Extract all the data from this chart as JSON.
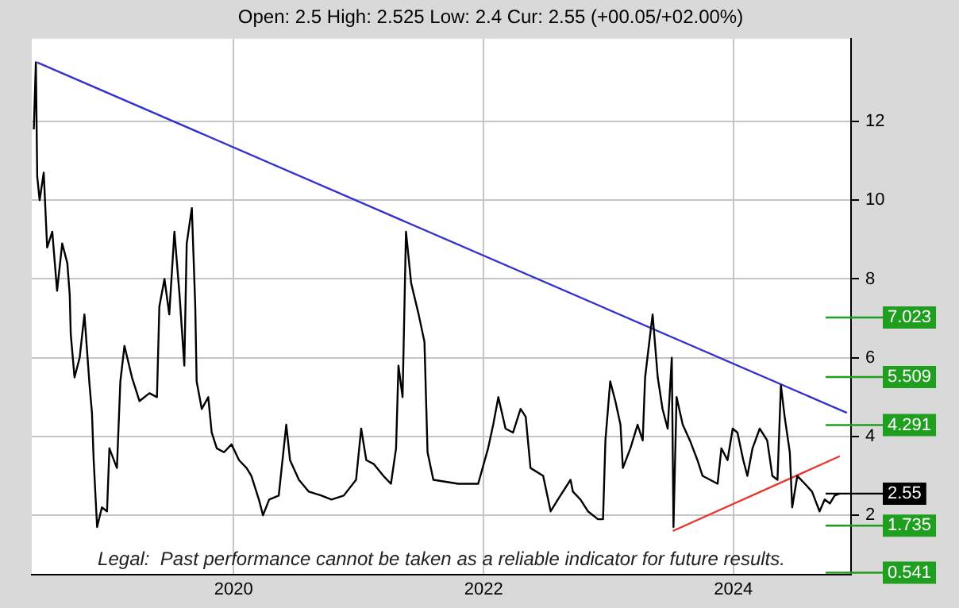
{
  "chart_data": {
    "type": "line",
    "subtitle": "Open: 2.5 High: 2.525 Low: 2.4 Cur: 2.55 (+00.05/+02.00%)",
    "annotations": [
      "Legal:  Past performance cannot be taken as a reliable indicator for future results."
    ],
    "xlim": [
      "2018-05-21",
      "2024-12-10"
    ],
    "xticks": [
      "2020",
      "2022",
      "2024"
    ],
    "ylim": [
      0.5,
      14.1
    ],
    "yticks": [
      2,
      4,
      6,
      8,
      10,
      12
    ],
    "grid": true,
    "legend": false,
    "series": [
      {
        "color": "#000000",
        "x": [
          "2018-05-27",
          "2018-06-02",
          "2018-06-06",
          "2018-06-13",
          "2018-06-25",
          "2018-07-05",
          "2018-07-20",
          "2018-08-03",
          "2018-08-18",
          "2018-09-02",
          "2018-09-09",
          "2018-09-12",
          "2018-09-23",
          "2018-10-08",
          "2018-10-22",
          "2018-11-06",
          "2018-11-13",
          "2018-11-18",
          "2018-11-28",
          "2018-12-12",
          "2018-12-27",
          "2019-01-03",
          "2019-01-25",
          "2019-02-04",
          "2019-02-16",
          "2019-03-10",
          "2019-04-01",
          "2019-04-30",
          "2019-05-22",
          "2019-05-29",
          "2019-06-13",
          "2019-06-27",
          "2019-07-12",
          "2019-07-27",
          "2019-08-10",
          "2019-08-17",
          "2019-09-01",
          "2019-09-11",
          "2019-09-15",
          "2019-09-30",
          "2019-10-19",
          "2019-10-29",
          "2019-11-13",
          "2019-12-04",
          "2019-12-26",
          "2020-01-17",
          "2020-02-08",
          "2020-02-22",
          "2020-03-15",
          "2020-03-27",
          "2020-04-14",
          "2020-05-12",
          "2020-06-03",
          "2020-06-14",
          "2020-07-10",
          "2020-08-08",
          "2020-09-14",
          "2020-10-13",
          "2020-11-18",
          "2020-12-24",
          "2021-01-08",
          "2021-01-23",
          "2021-02-14",
          "2021-03-14",
          "2021-04-05",
          "2021-04-20",
          "2021-04-27",
          "2021-05-09",
          "2021-05-19",
          "2021-06-03",
          "2021-06-25",
          "2021-07-12",
          "2021-07-21",
          "2021-08-07",
          "2021-10-19",
          "2021-12-16",
          "2022-01-14",
          "2022-01-29",
          "2022-02-13",
          "2022-03-06",
          "2022-03-28",
          "2022-04-19",
          "2022-05-04",
          "2022-05-18",
          "2022-06-24",
          "2022-07-16",
          "2022-08-06",
          "2022-09-12",
          "2022-09-19",
          "2022-10-11",
          "2022-11-02",
          "2022-12-01",
          "2022-12-16",
          "2022-12-23",
          "2023-01-06",
          "2023-01-21",
          "2023-02-05",
          "2023-02-12",
          "2023-03-06",
          "2023-03-27",
          "2023-04-11",
          "2023-04-18",
          "2023-05-03",
          "2023-05-10",
          "2023-05-25",
          "2023-06-08",
          "2023-06-23",
          "2023-07-05",
          "2023-07-10",
          "2023-07-19",
          "2023-08-06",
          "2023-08-27",
          "2023-09-18",
          "2023-10-03",
          "2023-10-25",
          "2023-11-16",
          "2023-11-27",
          "2023-12-15",
          "2023-12-30",
          "2024-01-13",
          "2024-01-30",
          "2024-02-11",
          "2024-02-26",
          "2024-03-18",
          "2024-04-09",
          "2024-04-24",
          "2024-05-09",
          "2024-05-19",
          "2024-05-30",
          "2024-06-14",
          "2024-06-21",
          "2024-07-06",
          "2024-07-28",
          "2024-08-18",
          "2024-09-09",
          "2024-09-24",
          "2024-10-09",
          "2024-10-23",
          "2024-11-07"
        ],
        "values": [
          11.8,
          13.5,
          10.6,
          10.0,
          10.7,
          8.8,
          9.2,
          7.7,
          8.9,
          8.4,
          7.6,
          6.6,
          5.5,
          6.0,
          7.1,
          5.3,
          4.6,
          3.4,
          1.7,
          2.2,
          2.1,
          3.7,
          3.2,
          5.4,
          6.3,
          5.5,
          4.9,
          5.1,
          5.0,
          7.3,
          8.0,
          7.1,
          9.2,
          7.6,
          5.8,
          8.9,
          9.8,
          7.3,
          5.4,
          4.7,
          5.0,
          4.1,
          3.7,
          3.6,
          3.8,
          3.4,
          3.2,
          3.0,
          2.4,
          2.0,
          2.4,
          2.5,
          4.3,
          3.4,
          2.9,
          2.6,
          2.5,
          2.4,
          2.5,
          2.9,
          4.2,
          3.4,
          3.3,
          3.0,
          2.8,
          3.7,
          5.8,
          5.0,
          9.2,
          7.9,
          7.1,
          6.4,
          3.6,
          2.9,
          2.8,
          2.8,
          3.7,
          4.3,
          5.0,
          4.2,
          4.1,
          4.7,
          4.5,
          3.2,
          3.0,
          2.1,
          2.4,
          2.9,
          2.6,
          2.4,
          2.1,
          1.9,
          1.9,
          3.9,
          5.4,
          4.9,
          4.3,
          3.2,
          3.7,
          4.3,
          3.9,
          5.5,
          6.6,
          7.1,
          5.5,
          4.7,
          4.2,
          6.0,
          1.7,
          5.0,
          4.3,
          3.9,
          3.4,
          3.0,
          2.9,
          2.8,
          3.7,
          3.4,
          4.2,
          4.1,
          3.4,
          3.0,
          3.7,
          4.2,
          3.9,
          3.0,
          2.9,
          5.3,
          4.5,
          3.6,
          2.2,
          3.0,
          2.8,
          2.6,
          2.1,
          2.4,
          2.3,
          2.5,
          2.55
        ]
      },
      {
        "color": "#3333cc",
        "x": [
          "2018-06-06",
          "2024-11-28"
        ],
        "values": [
          13.5,
          4.6
        ]
      },
      {
        "color": "#e8382e",
        "x": [
          "2023-07-08",
          "2024-11-07"
        ],
        "values": [
          1.6,
          3.5
        ]
      }
    ],
    "ref_lines": [
      {
        "axis": "y",
        "value": 7.023,
        "label": "7.023",
        "color": "#1f9e1f"
      },
      {
        "axis": "y",
        "value": 5.509,
        "label": "5.509",
        "color": "#1f9e1f"
      },
      {
        "axis": "y",
        "value": 4.291,
        "label": "4.291",
        "color": "#1f9e1f"
      },
      {
        "axis": "y",
        "value": 2.55,
        "label": "2.55",
        "color": "#000000"
      },
      {
        "axis": "y",
        "value": 1.735,
        "label": "1.735",
        "color": "#1f9e1f"
      },
      {
        "axis": "y",
        "value": 0.541,
        "label": "0.541",
        "color": "#1f9e1f"
      }
    ]
  }
}
